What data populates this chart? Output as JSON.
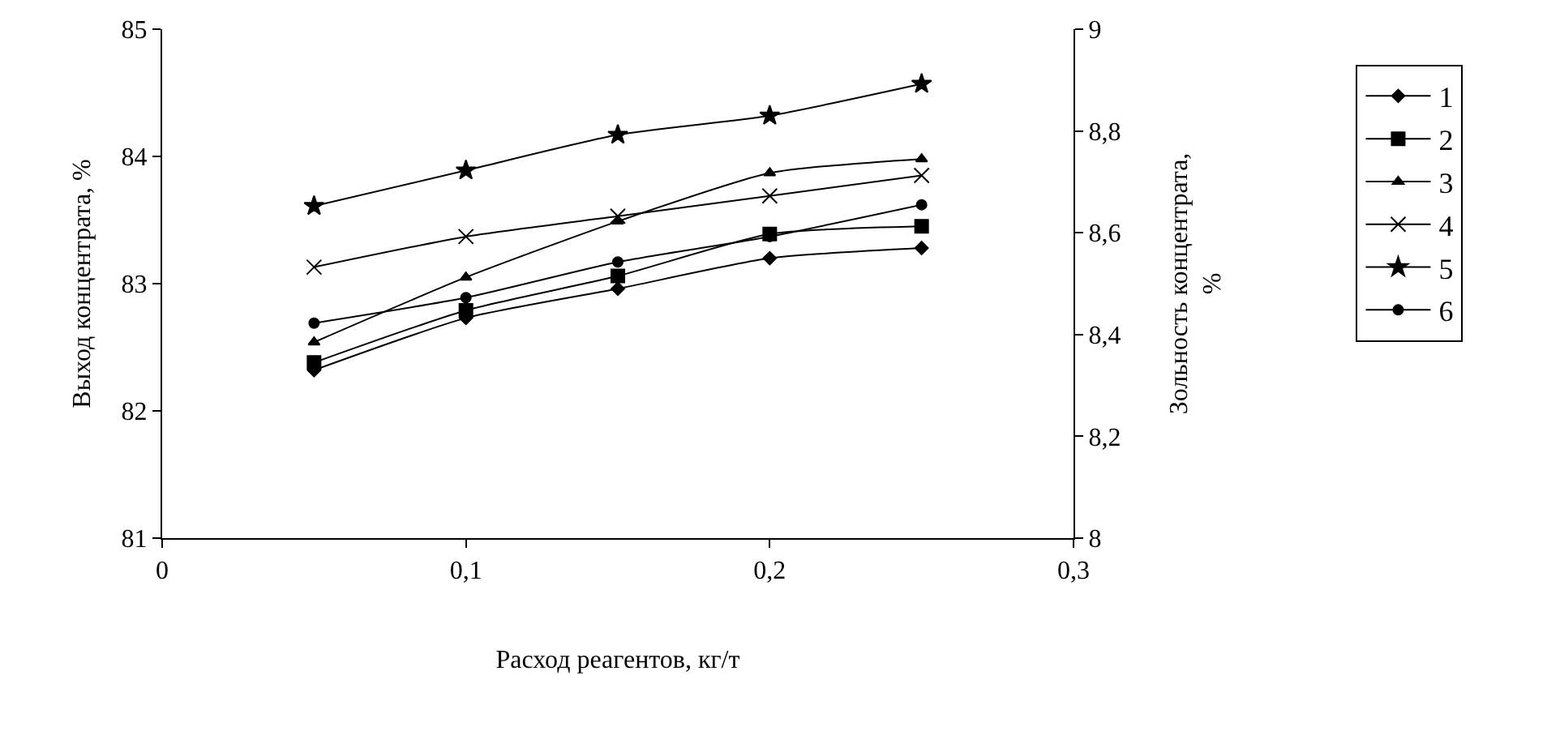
{
  "chart_data": {
    "type": "line",
    "xlabel": "Расход реагентов, кг/т",
    "ylabel": "Выход концентрата, %",
    "y2label": "Зольность концентрата,\n%",
    "x": [
      0.05,
      0.1,
      0.15,
      0.2,
      0.25
    ],
    "series": [
      {
        "name": "1",
        "color": "#000000",
        "marker": "diamond",
        "values": [
          82.32,
          82.73,
          82.96,
          83.2,
          83.28
        ]
      },
      {
        "name": "2",
        "color": "#000000",
        "marker": "square",
        "values": [
          82.38,
          82.79,
          83.06,
          83.39,
          83.45
        ]
      },
      {
        "name": "3",
        "color": "#000000",
        "marker": "triangle",
        "values": [
          82.54,
          83.05,
          83.49,
          83.87,
          83.98
        ]
      },
      {
        "name": "4",
        "color": "#000000",
        "marker": "cross",
        "values": [
          83.13,
          83.37,
          83.53,
          83.69,
          83.85
        ]
      },
      {
        "name": "5",
        "color": "#000000",
        "marker": "star",
        "values": [
          83.61,
          83.89,
          84.17,
          84.32,
          84.57
        ]
      },
      {
        "name": "6",
        "color": "#000000",
        "marker": "circle",
        "values": [
          82.69,
          82.89,
          83.17,
          83.37,
          83.62
        ]
      }
    ],
    "xlim": [
      0,
      0.3
    ],
    "xticks": [
      0,
      {
        "value": 0.1,
        "label": "0,1"
      },
      {
        "value": 0.2,
        "label": "0,2"
      },
      {
        "value": 0.3,
        "label": "0,3"
      }
    ],
    "ylim": [
      81,
      85
    ],
    "yticks": [
      81,
      82,
      83,
      84,
      85
    ],
    "y2lim": [
      8,
      9
    ],
    "y2ticks": [
      8,
      {
        "value": 8.2,
        "label": "8,2"
      },
      {
        "value": 8.4,
        "label": "8,4"
      },
      {
        "value": 8.6,
        "label": "8,6"
      },
      {
        "value": 8.8,
        "label": "8,8"
      },
      9
    ],
    "grid": false,
    "legend": "right",
    "line_style": "solid"
  }
}
